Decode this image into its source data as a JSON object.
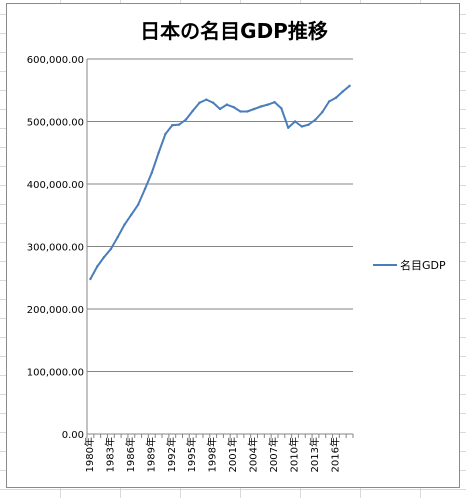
{
  "chart_data": {
    "type": "line",
    "title": "日本の名目GDP推移",
    "xlabel": "",
    "ylabel": "",
    "x": [
      "1980年",
      "1981年",
      "1982年",
      "1983年",
      "1984年",
      "1985年",
      "1986年",
      "1987年",
      "1988年",
      "1989年",
      "1990年",
      "1991年",
      "1992年",
      "1993年",
      "1994年",
      "1995年",
      "1996年",
      "1997年",
      "1998年",
      "1999年",
      "2000年",
      "2001年",
      "2002年",
      "2003年",
      "2004年",
      "2005年",
      "2006年",
      "2007年",
      "2008年",
      "2009年",
      "2010年",
      "2011年",
      "2012年",
      "2013年",
      "2014年",
      "2015年",
      "2016年",
      "2017年",
      "2018年"
    ],
    "x_tick_labels": [
      "1980年",
      "1983年",
      "1986年",
      "1989年",
      "1992年",
      "1995年",
      "1998年",
      "2001年",
      "2004年",
      "2007年",
      "2010年",
      "2013年",
      "2016年"
    ],
    "ylim": [
      0,
      600000
    ],
    "y_ticks": [
      {
        "value": 0,
        "label": "0.00"
      },
      {
        "value": 100000,
        "label": "100,000.00"
      },
      {
        "value": 200000,
        "label": "200,000.00"
      },
      {
        "value": 300000,
        "label": "300,000.00"
      },
      {
        "value": 400000,
        "label": "400,000.00"
      },
      {
        "value": 500000,
        "label": "500,000.00"
      },
      {
        "value": 600000,
        "label": "600,000.00"
      }
    ],
    "grid": "horizontal",
    "legend_position": "right",
    "series": [
      {
        "name": "名目GDP",
        "color": "#4a7ebb",
        "values": [
          248000,
          268000,
          283000,
          296000,
          315000,
          335000,
          351000,
          367000,
          392000,
          418000,
          450000,
          480000,
          494000,
          495000,
          503000,
          517000,
          530000,
          535000,
          530000,
          520000,
          527000,
          523000,
          516000,
          516000,
          520000,
          524000,
          527000,
          531000,
          521000,
          490000,
          500000,
          492000,
          495000,
          503000,
          515000,
          532000,
          538000,
          548000,
          557000
        ]
      }
    ]
  }
}
